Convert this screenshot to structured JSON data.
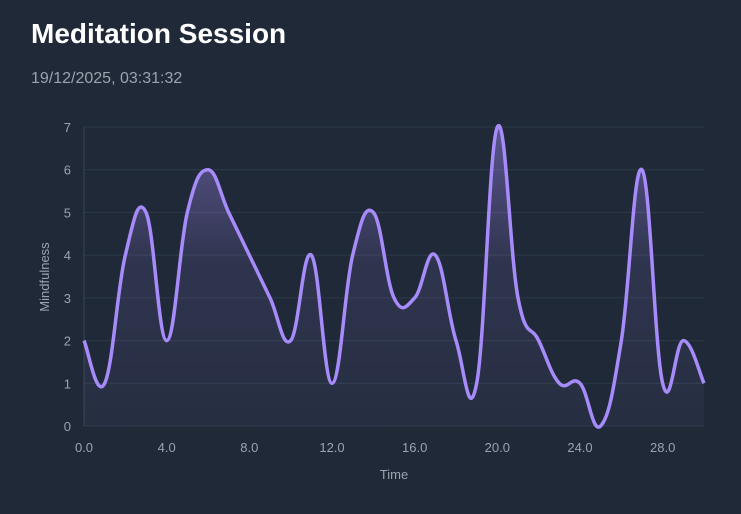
{
  "header": {
    "title": "Meditation Session",
    "timestamp": "19/12/2025, 03:31:32"
  },
  "chart_data": {
    "type": "area",
    "title": "",
    "xlabel": "Time",
    "ylabel": "Mindfulness",
    "xlim": [
      0,
      30
    ],
    "ylim": [
      0,
      7
    ],
    "x_ticks": [
      "0.0",
      "4.0",
      "8.0",
      "12.0",
      "16.0",
      "20.0",
      "24.0",
      "28.0"
    ],
    "y_ticks": [
      "0",
      "1",
      "2",
      "3",
      "4",
      "5",
      "6",
      "7"
    ],
    "grid": true,
    "line_color": "#a78bfa",
    "x": [
      0,
      1,
      2,
      3,
      4,
      5,
      6,
      7,
      8,
      9,
      10,
      11,
      12,
      13,
      14,
      15,
      16,
      17,
      18,
      19,
      20,
      21,
      22,
      23,
      24,
      25,
      26,
      27,
      28,
      29,
      30
    ],
    "values": [
      2,
      1,
      4,
      5,
      2,
      5,
      6,
      5,
      4,
      3,
      2,
      4,
      1,
      4,
      5,
      3,
      3,
      4,
      2,
      1,
      7,
      3,
      2,
      1,
      1,
      0,
      2,
      6,
      1,
      2,
      1
    ]
  }
}
